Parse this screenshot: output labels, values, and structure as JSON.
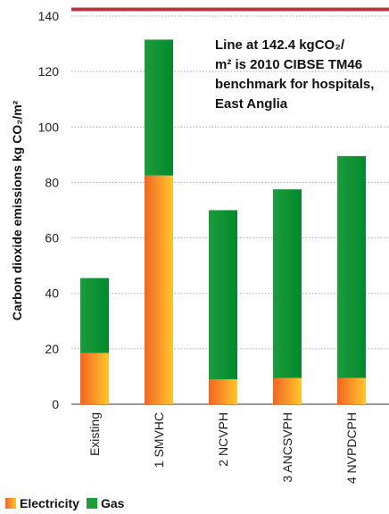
{
  "chart_data": {
    "type": "bar",
    "stacked": true,
    "categories": [
      "Existing",
      "1 SMVHC",
      "2 NCVPH",
      "3 ANCSVPH",
      "4 NVPDCPH"
    ],
    "series": [
      {
        "name": "Electricity",
        "values": [
          18.5,
          82.5,
          9,
          9.5,
          9.5
        ]
      },
      {
        "name": "Gas",
        "values": [
          27,
          49,
          61,
          68,
          80
        ]
      }
    ],
    "ylabel": "Carbon dioxide emissions kg CO₂/m²",
    "ylim": [
      0,
      140
    ],
    "yticks": [
      "0",
      "20",
      "40",
      "60",
      "80",
      "100",
      "120",
      "140"
    ],
    "benchmark": {
      "value": 142.4
    },
    "annotation": [
      "Line at 142.4 kgCO₂/",
      "m² is 2010 CIBSE TM46",
      "benchmark for hospitals,",
      "East Anglia"
    ],
    "colors": {
      "electricity_top": "#ffc72c",
      "electricity_bottom": "#f26522",
      "gas_top": "#008a2e",
      "gas_bottom": "#1e9b3a",
      "benchmark": "#b5323e"
    },
    "legend_position": "bottom-left"
  }
}
